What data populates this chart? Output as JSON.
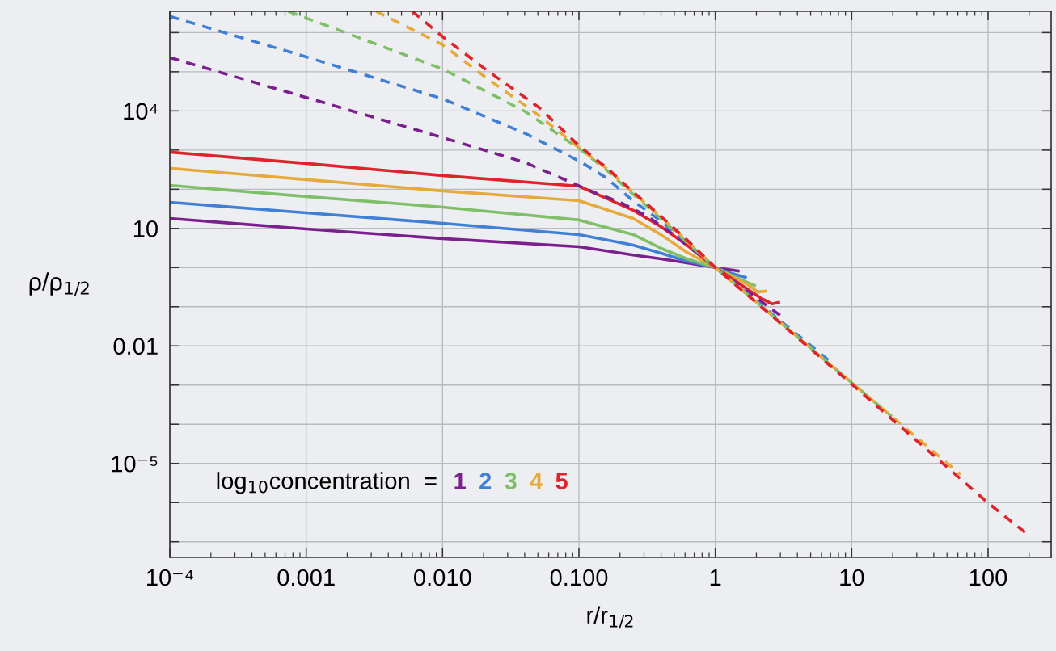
{
  "chart_data": {
    "type": "line",
    "log": "xy",
    "xlabel": "r/r$_{1/2}$",
    "ylabel": "ρ/ρ$_{1/2}$",
    "legend_title": "log$_{10}$concentration  =",
    "legend": "bottom left",
    "grid": true,
    "xlim": [
      0.0001,
      290
    ],
    "ylim": [
      4e-08,
      3500000.0
    ],
    "xticks": [
      {
        "value": 0.0001,
        "label": "10⁻⁴"
      },
      0.001,
      {
        "value": 0.01,
        "label": "0.010"
      },
      {
        "value": 0.1,
        "label": "0.100"
      },
      1,
      10,
      100
    ],
    "yticks": [
      {
        "value": 1e-07,
        "label": null
      },
      {
        "value": 1e-06,
        "label": null
      },
      {
        "value": 1e-05,
        "label": "10⁻⁵"
      },
      {
        "value": 0.0001,
        "label": null
      },
      {
        "value": 0.001,
        "label": null
      },
      0.01,
      {
        "value": 0.1,
        "label": null
      },
      {
        "value": 1,
        "label": null
      },
      10,
      {
        "value": 100,
        "label": null
      },
      {
        "value": 1000,
        "label": null
      },
      {
        "value": 10000,
        "label": "10⁴"
      },
      {
        "value": 100000,
        "label": null
      },
      {
        "value": 1000000,
        "label": null
      }
    ],
    "series": [
      {
        "name": "1",
        "color": "#7b1f8e",
        "line_style": "solid",
        "x": [
          0.0001,
          0.001,
          0.01,
          0.1,
          0.25,
          0.4,
          0.62,
          1,
          1.47
        ],
        "values": [
          18,
          9.7,
          5.5,
          3.4,
          2.1,
          1.67,
          1.32,
          1,
          0.82
        ]
      },
      {
        "name": "2",
        "color": "#3f7fd8",
        "line_style": "solid",
        "x": [
          0.0001,
          0.001,
          0.01,
          0.1,
          0.25,
          0.4,
          0.62,
          1,
          1.32,
          1.66
        ],
        "values": [
          46.5,
          25,
          13.5,
          6.95,
          3.75,
          2.33,
          1.45,
          1,
          0.71,
          0.56
        ]
      },
      {
        "name": "3",
        "color": "#7fbf68",
        "line_style": "solid",
        "x": [
          0.0001,
          0.001,
          0.01,
          0.1,
          0.25,
          0.4,
          0.62,
          1,
          1.58,
          1.94
        ],
        "values": [
          126,
          65,
          35,
          16.4,
          6.95,
          3.1,
          1.67,
          1,
          0.47,
          0.35
        ]
      },
      {
        "name": "4",
        "color": "#e6aa3a",
        "line_style": "solid",
        "x": [
          0.0001,
          0.001,
          0.01,
          0.1,
          0.25,
          0.4,
          0.62,
          1,
          1.73,
          2.04,
          2.34
        ],
        "values": [
          343,
          176,
          90.6,
          51,
          18,
          6.9,
          2.44,
          1,
          0.365,
          0.24,
          0.25
        ]
      },
      {
        "name": "5",
        "color": "#e0232a",
        "line_style": "solid",
        "x": [
          0.0001,
          0.001,
          0.01,
          0.1,
          0.25,
          0.4,
          0.62,
          1,
          2.13,
          2.61,
          2.91
        ],
        "values": [
          885,
          455,
          224,
          120,
          29,
          11,
          3.75,
          1,
          0.17,
          0.118,
          0.129
        ]
      },
      {
        "color": "#7b1f8e",
        "line_style": "dashed",
        "x": [
          0.0001,
          0.001,
          0.01,
          0.0406,
          0.126,
          0.2,
          0.315,
          0.494,
          1,
          2.99
        ],
        "values": [
          230000,
          22000,
          2090,
          478,
          86,
          46.5,
          20.7,
          6.95,
          1,
          0.06
        ]
      },
      {
        "color": "#3f7fd8",
        "line_style": "dashed",
        "x": [
          0.0001,
          0.001,
          0.01,
          0.0406,
          0.103,
          0.159,
          0.249,
          0.397,
          0.622,
          1,
          7.08
        ],
        "values": [
          2600000,
          240000,
          20400,
          2640,
          500,
          194,
          51,
          15.6,
          4.3,
          1,
          0.0038
        ]
      },
      {
        "color": "#7fbf68",
        "line_style": "dashed",
        "x": [
          0.00074,
          0.01,
          0.0406,
          0.103,
          0.159,
          0.249,
          0.397,
          0.622,
          1,
          19.7
        ],
        "values": [
          3500000,
          118000,
          9500,
          1020,
          311,
          75,
          18,
          4.3,
          1,
          0.000158
        ]
      },
      {
        "color": "#e6aa3a",
        "line_style": "dashed",
        "x": [
          0.00325,
          0.01,
          0.0205,
          0.0513,
          0.103,
          0.159,
          0.249,
          0.397,
          0.622,
          1,
          62.8
        ],
        "values": [
          3500000,
          490000,
          74000,
          7500,
          1050,
          343,
          82,
          19.8,
          4.75,
          1,
          5.2e-06
        ]
      },
      {
        "color": "#e0232a",
        "line_style": "dashed",
        "x": [
          0.006,
          0.01,
          0.0205,
          0.0513,
          0.103,
          0.159,
          0.249,
          0.397,
          0.622,
          1,
          10,
          100,
          192
        ],
        "values": [
          3500000,
          790000,
          118000,
          12000,
          1180,
          359,
          86,
          20.7,
          5,
          1,
          0.00106,
          9.8e-07,
          1.6e-07
        ]
      }
    ]
  }
}
